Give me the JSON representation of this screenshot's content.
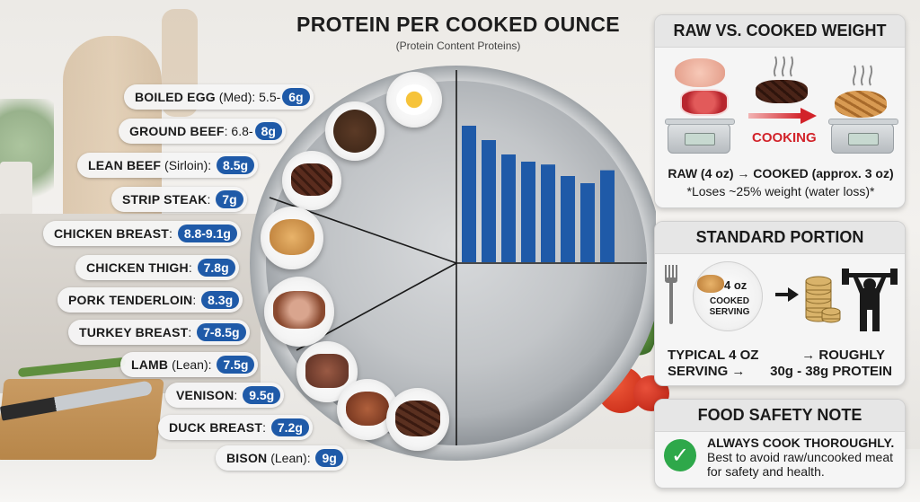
{
  "header": {
    "title": "PROTEIN PER COOKED OUNCE",
    "subtitle": "(Protein Content Proteins)"
  },
  "proteins": [
    {
      "name": "BOILED EGG",
      "qualifier": "(Med)",
      "prefix": ": 5.5-",
      "value": "6g"
    },
    {
      "name": "GROUND BEEF",
      "qualifier": "",
      "prefix": ": 6.8-",
      "value": "8g"
    },
    {
      "name": "LEAN BEEF",
      "qualifier": "(Sirloin)",
      "prefix": ":",
      "value": "8.5g"
    },
    {
      "name": "STRIP STEAK",
      "qualifier": "",
      "prefix": ":",
      "value": "7g"
    },
    {
      "name": "CHICKEN BREAST",
      "qualifier": "",
      "prefix": ":",
      "value": "8.8-9.1g"
    },
    {
      "name": "CHICKEN THIGH",
      "qualifier": "",
      "prefix": ":",
      "value": "7.8g"
    },
    {
      "name": "PORK TENDERLOIN",
      "qualifier": "",
      "prefix": ":",
      "value": "8.3g"
    },
    {
      "name": "TURKEY BREAST",
      "qualifier": "",
      "prefix": ":",
      "value": "7-8.5g"
    },
    {
      "name": "LAMB",
      "qualifier": "(Lean)",
      "prefix": ":",
      "value": "7.5g"
    },
    {
      "name": "VENISON",
      "qualifier": "",
      "prefix": ":",
      "value": "9.5g"
    },
    {
      "name": "DUCK BREAST",
      "qualifier": "",
      "prefix": ":",
      "value": "7.2g"
    },
    {
      "name": "BISON",
      "qualifier": "(Lean)",
      "prefix": ":",
      "value": "9g"
    }
  ],
  "chart_data": {
    "type": "bar",
    "title": "",
    "xlabel": "",
    "ylabel": "",
    "categories": [
      "",
      "",
      "",
      "",
      "",
      "",
      "",
      ""
    ],
    "values": [
      9.5,
      8.5,
      7.5,
      7.0,
      6.8,
      6.0,
      5.5,
      6.4
    ],
    "ylim": [
      0,
      10
    ],
    "grid": false,
    "color": "#1f5aa8"
  },
  "panels": {
    "raw_vs_cooked": {
      "title": "RAW VS. COOKED WEIGHT",
      "cooking_label": "COOKING",
      "line1": "RAW (4 oz) → COOKED (approx. 3 oz)",
      "line2": "*Loses ~25% weight (water loss)*"
    },
    "standard_portion": {
      "title": "STANDARD PORTION",
      "plate_label_1": "4 oz",
      "plate_label_2": "COOKED SERVING",
      "typical_1": "TYPICAL 4 OZ",
      "typical_2": "SERVING →",
      "result_1": "→ ROUGHLY",
      "result_2": "30g - 38g PROTEIN"
    },
    "food_safety": {
      "title": "FOOD SAFETY NOTE",
      "bold": "ALWAYS COOK THOROUGHLY.",
      "body": "Best to avoid raw/uncooked meat for safety and health."
    }
  },
  "colors": {
    "accent": "#1f5aa8",
    "cooking": "#d2232a",
    "check": "#2ea84a"
  }
}
